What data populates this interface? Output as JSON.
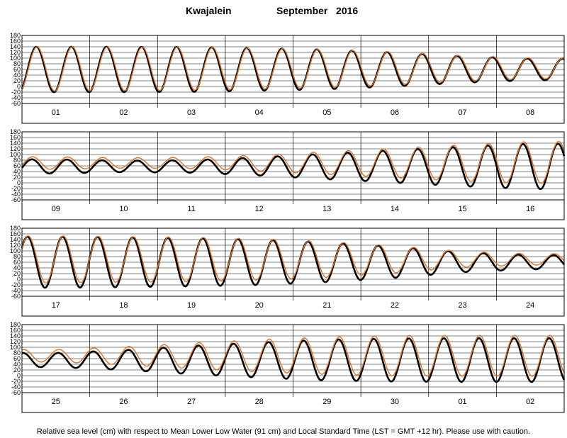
{
  "header": {
    "station": "Kwajalein",
    "month_year": "September   2016"
  },
  "footnote": "Relative sea level (cm) with respect to Mean Lower Low Water (91 cm) and Local Standard Time (LST = GMT +12 hr). Please use with caution.",
  "colors": {
    "observed": "#000000",
    "predicted": "#e07020",
    "grid": "#000000"
  },
  "chart_data": {
    "type": "line",
    "y_ticks": [
      180,
      160,
      140,
      120,
      100,
      80,
      60,
      40,
      20,
      0,
      -20,
      -40,
      -60
    ],
    "ylim": [
      -60,
      180
    ],
    "grid": true,
    "panels": [
      {
        "days": [
          "01",
          "02",
          "03",
          "04",
          "05",
          "06",
          "07",
          "08"
        ],
        "observed_amplitude": [
          80,
          80,
          79,
          75,
          70,
          60,
          47,
          38
        ],
        "observed_mean": [
          60,
          60,
          60,
          60,
          60,
          60,
          60,
          60
        ],
        "predicted_amplitude": [
          78,
          77,
          76,
          72,
          67,
          58,
          45,
          37
        ],
        "predicted_mean": [
          62,
          62,
          63,
          63,
          63,
          64,
          64,
          64
        ]
      },
      {
        "days": [
          "09",
          "10",
          "11",
          "12",
          "13",
          "14",
          "15",
          "16"
        ],
        "observed_amplitude": [
          25,
          20,
          22,
          32,
          45,
          57,
          70,
          80
        ],
        "observed_mean": [
          58,
          58,
          58,
          58,
          58,
          58,
          58,
          58
        ],
        "predicted_amplitude": [
          22,
          18,
          20,
          28,
          40,
          52,
          64,
          74
        ],
        "predicted_mean": [
          70,
          70,
          70,
          70,
          70,
          70,
          70,
          72
        ]
      },
      {
        "days": [
          "17",
          "18",
          "19",
          "20",
          "21",
          "22",
          "23",
          "24"
        ],
        "observed_amplitude": [
          90,
          88,
          85,
          80,
          70,
          55,
          35,
          25
        ],
        "observed_mean": [
          60,
          60,
          60,
          60,
          60,
          60,
          60,
          60
        ],
        "predicted_amplitude": [
          83,
          80,
          78,
          73,
          63,
          48,
          28,
          20
        ],
        "predicted_mean": [
          70,
          70,
          70,
          70,
          70,
          70,
          70,
          70
        ]
      },
      {
        "days": [
          "25",
          "26",
          "27",
          "28",
          "29",
          "30",
          "01",
          "02"
        ],
        "observed_amplitude": [
          25,
          35,
          50,
          62,
          72,
          76,
          77,
          77
        ],
        "observed_mean": [
          55,
          55,
          55,
          55,
          55,
          55,
          55,
          55
        ],
        "predicted_amplitude": [
          22,
          32,
          45,
          57,
          66,
          71,
          72,
          72
        ],
        "predicted_mean": [
          70,
          70,
          70,
          70,
          70,
          70,
          70,
          70
        ]
      }
    ]
  }
}
